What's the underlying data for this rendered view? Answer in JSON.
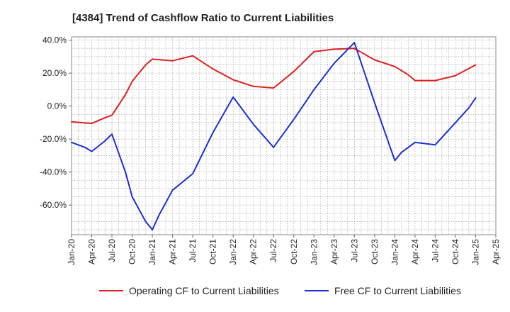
{
  "chart_data": {
    "type": "line",
    "title": "[4384]  Trend of Cashflow Ratio to Current Liabilities",
    "xlabel": "",
    "ylabel": "",
    "x_ticks": [
      "Jan-20",
      "Apr-20",
      "Jul-20",
      "Oct-20",
      "Jan-21",
      "Apr-21",
      "Jul-21",
      "Oct-21",
      "Jan-22",
      "Apr-22",
      "Jul-22",
      "Oct-22",
      "Jan-23",
      "Apr-23",
      "Jul-23",
      "Oct-23",
      "Jan-24",
      "Apr-24",
      "Jul-24",
      "Oct-24",
      "Jan-25",
      "Apr-25"
    ],
    "y_ticks": [
      "40.0%",
      "20.0%",
      "0.0%",
      "-20.0%",
      "-40.0%",
      "-60.0%"
    ],
    "y_tick_values": [
      40,
      20,
      0,
      -20,
      -40,
      -60
    ],
    "ylim": [
      -78,
      42
    ],
    "grid": true,
    "legend_position": "bottom",
    "series": [
      {
        "name": "Operating CF to Current Liabilities",
        "color": "#e02020",
        "points": [
          [
            "Jan-20",
            -9.5
          ],
          [
            "Apr-20",
            -10.5
          ],
          [
            "Jun-20",
            -7
          ],
          [
            "Jul-20",
            -5.5
          ],
          [
            "Sep-20",
            7
          ],
          [
            "Oct-20",
            15
          ],
          [
            "Dec-20",
            25
          ],
          [
            "Jan-21",
            28.5
          ],
          [
            "Apr-21",
            27.5
          ],
          [
            "Jul-21",
            30.5
          ],
          [
            "Oct-21",
            22.5
          ],
          [
            "Jan-22",
            16
          ],
          [
            "Apr-22",
            12
          ],
          [
            "Jul-22",
            11
          ],
          [
            "Oct-22",
            21
          ],
          [
            "Jan-23",
            33
          ],
          [
            "Apr-23",
            34.5
          ],
          [
            "Jul-23",
            35
          ],
          [
            "Oct-23",
            28
          ],
          [
            "Jan-24",
            24
          ],
          [
            "Mar-24",
            19
          ],
          [
            "Apr-24",
            15.5
          ],
          [
            "Jul-24",
            15.5
          ],
          [
            "Oct-24",
            18.5
          ],
          [
            "Jan-25",
            25
          ]
        ]
      },
      {
        "name": "Free CF to Current Liabilities",
        "color": "#1f2fd0",
        "points": [
          [
            "Jan-20",
            -22
          ],
          [
            "Mar-20",
            -25
          ],
          [
            "Apr-20",
            -27.5
          ],
          [
            "Jun-20",
            -21
          ],
          [
            "Jul-20",
            -17
          ],
          [
            "Sep-20",
            -40
          ],
          [
            "Oct-20",
            -55
          ],
          [
            "Dec-20",
            -70
          ],
          [
            "Jan-21",
            -75
          ],
          [
            "Feb-21",
            -66
          ],
          [
            "Apr-21",
            -51
          ],
          [
            "Jul-21",
            -41
          ],
          [
            "Oct-21",
            -16
          ],
          [
            "Jan-22",
            5.5
          ],
          [
            "Apr-22",
            -11
          ],
          [
            "Jul-22",
            -25
          ],
          [
            "Oct-22",
            -8
          ],
          [
            "Jan-23",
            10
          ],
          [
            "Apr-23",
            26
          ],
          [
            "Jul-23",
            38.5
          ],
          [
            "Oct-23",
            2
          ],
          [
            "Jan-24",
            -33
          ],
          [
            "Feb-24",
            -28
          ],
          [
            "Apr-24",
            -22
          ],
          [
            "Jul-24",
            -23.5
          ],
          [
            "Oct-24",
            -10
          ],
          [
            "Dec-24",
            -1
          ],
          [
            "Jan-25",
            5
          ]
        ]
      }
    ]
  }
}
